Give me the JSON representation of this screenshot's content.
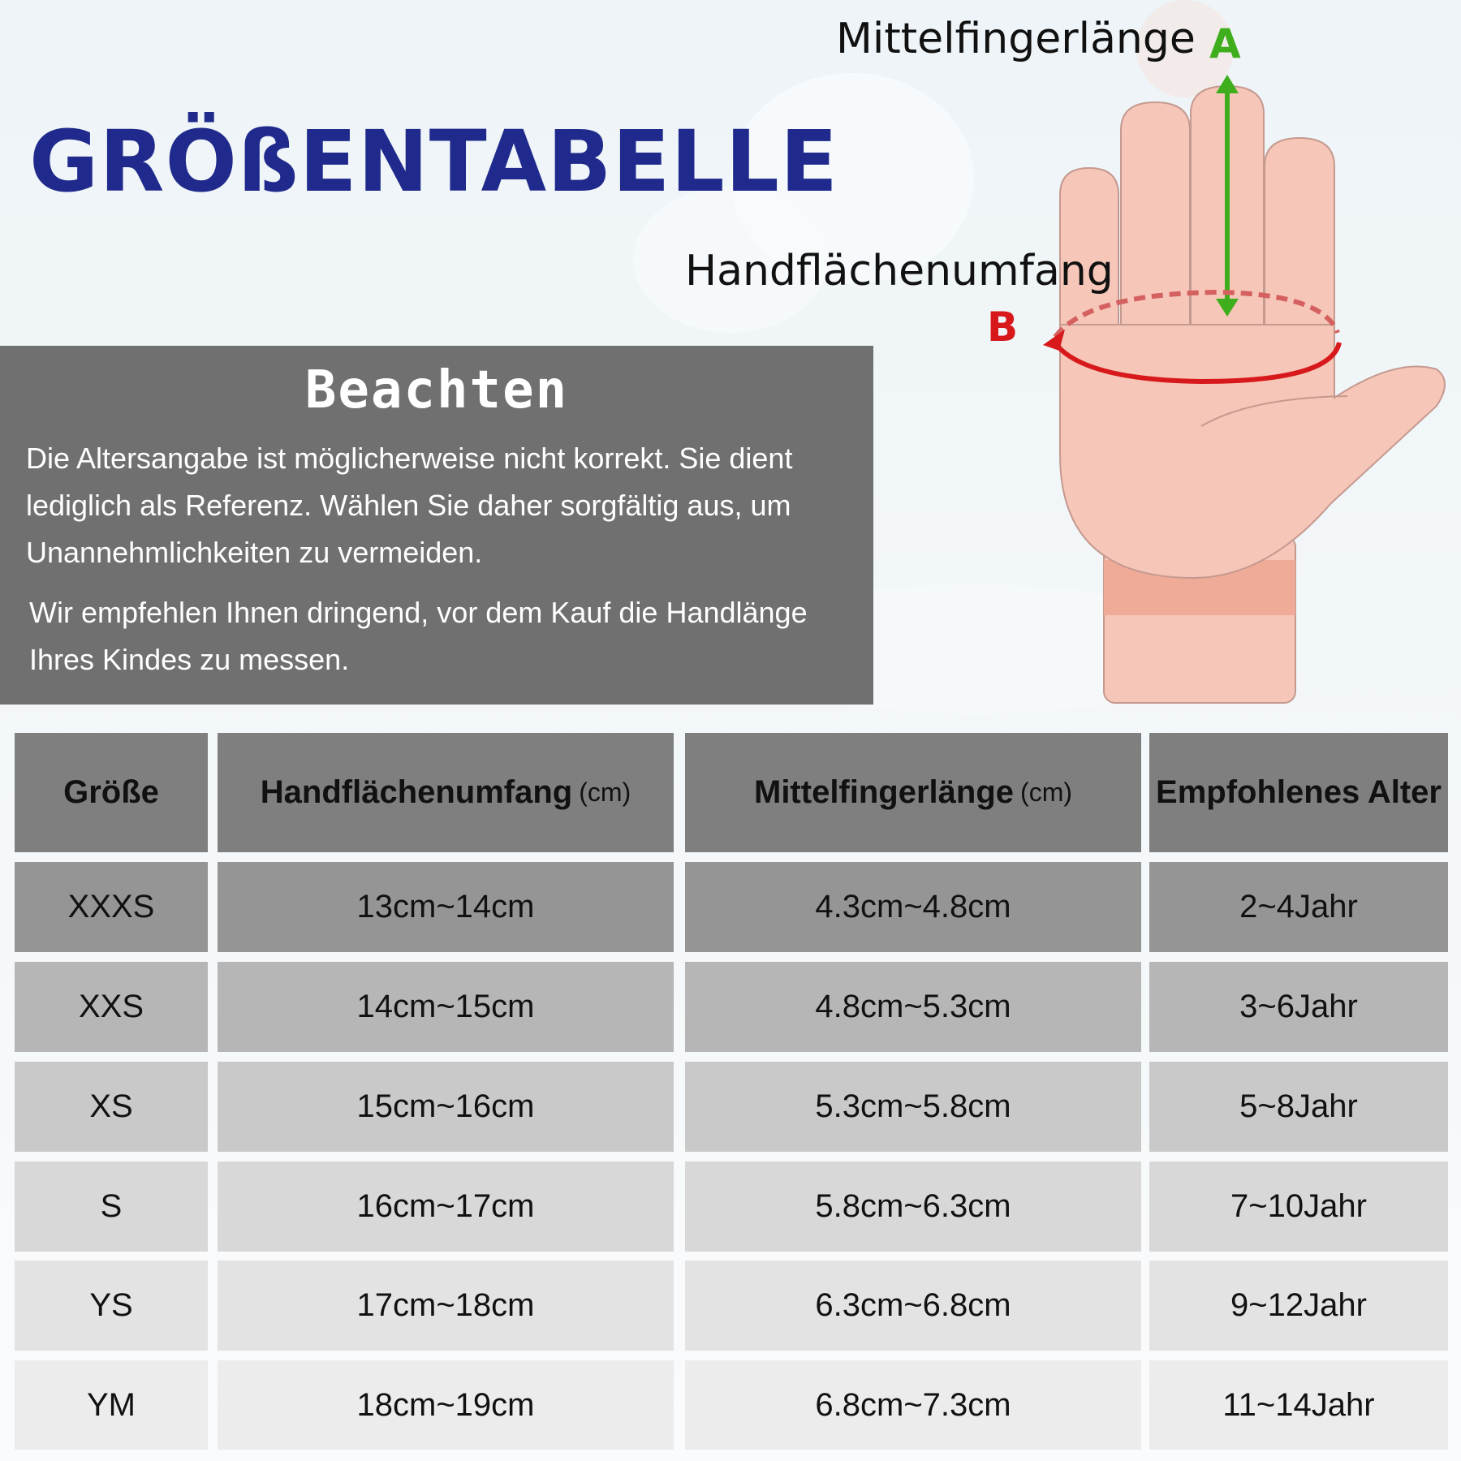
{
  "title": "GRÖßENTABELLE",
  "diagram": {
    "label_a": "Mittelfingerlänge",
    "letter_a": "A",
    "label_b": "Handflächenumfang",
    "letter_b": "B",
    "color_a": "#3fae1c",
    "color_b": "#d8191c"
  },
  "note": {
    "heading": "Beachten",
    "paragraph1": "Die Altersangabe ist möglicherweise nicht korrekt. Sie dient lediglich als Referenz. Wählen Sie daher sorgfältig aus, um Unannehmlichkeiten zu vermeiden.",
    "paragraph2": "Wir empfehlen Ihnen dringend, vor dem Kauf die Handlänge Ihres Kindes zu messen."
  },
  "table": {
    "headers": [
      {
        "label": "Größe",
        "unit": ""
      },
      {
        "label": "Handflächenumfang",
        "unit": "(cm)"
      },
      {
        "label": "Mittelfingerlänge",
        "unit": "(cm)"
      },
      {
        "label": "Empfohlenes Alter",
        "unit": ""
      }
    ],
    "rows": [
      [
        "XXXS",
        "13cm~14cm",
        "4.3cm~4.8cm",
        "2~4Jahr"
      ],
      [
        "XXS",
        "14cm~15cm",
        "4.8cm~5.3cm",
        "3~6Jahr"
      ],
      [
        "XS",
        "15cm~16cm",
        "5.3cm~5.8cm",
        "5~8Jahr"
      ],
      [
        "S",
        "16cm~17cm",
        "5.8cm~6.3cm",
        "7~10Jahr"
      ],
      [
        "YS",
        "17cm~18cm",
        "6.3cm~6.8cm",
        "9~12Jahr"
      ],
      [
        "YM",
        "18cm~19cm",
        "6.8cm~7.3cm",
        "11~14Jahr"
      ]
    ],
    "header_color": "#7f7f7f",
    "row_colors": [
      "#959595",
      "#b6b6b6",
      "#c9c9c9",
      "#d8d8d8",
      "#e3e3e3",
      "#ececec"
    ]
  }
}
